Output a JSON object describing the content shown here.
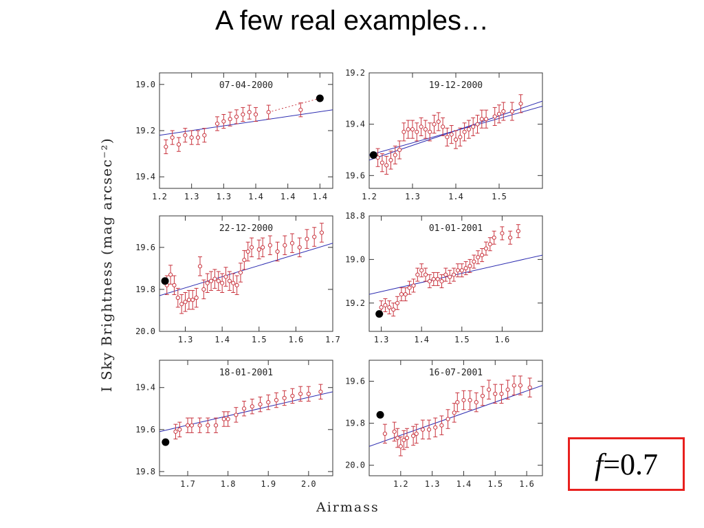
{
  "title": "A few real examples…",
  "ylabel": "I Sky Brightness (mag arcsec⁻²)",
  "xlabel": "Airmass",
  "f_box": {
    "symbol": "f",
    "value": "=0.7",
    "border_color": "#e8201e"
  },
  "colors": {
    "points": "#c8323c",
    "fit": "#2b2bb0",
    "highlight": "#000000",
    "axis": "#333333"
  },
  "chart_data": [
    {
      "type": "scatter",
      "title": "07-04-2000",
      "xlim": [
        1.2,
        1.47
      ],
      "ylim": [
        19.45,
        18.95
      ],
      "y_inverted": true,
      "xticks": [
        1.2,
        1.25,
        1.3,
        1.35,
        1.4,
        1.45
      ],
      "xtick_labels": [
        "1.2",
        "1.3",
        "1.3",
        "1.4",
        "1.4",
        "1.4"
      ],
      "yticks": [
        19.0,
        19.2,
        19.4
      ],
      "points": {
        "x": [
          1.21,
          1.22,
          1.23,
          1.24,
          1.25,
          1.26,
          1.27,
          1.29,
          1.3,
          1.31,
          1.32,
          1.33,
          1.34,
          1.35,
          1.37,
          1.42
        ],
        "y": [
          19.27,
          19.23,
          19.26,
          19.22,
          19.23,
          19.23,
          19.22,
          19.17,
          19.16,
          19.15,
          19.14,
          19.13,
          19.12,
          19.13,
          19.12,
          19.11
        ]
      },
      "errorbar": 0.03,
      "fit": {
        "x": [
          1.2,
          1.47
        ],
        "y": [
          19.22,
          19.11
        ]
      },
      "highlight": {
        "x": 1.45,
        "y": 19.06
      },
      "dotted_line": {
        "x": [
          1.37,
          1.45
        ],
        "y": [
          19.12,
          19.06
        ]
      }
    },
    {
      "type": "scatter",
      "title": "19-12-2000",
      "xlim": [
        1.2,
        1.6
      ],
      "ylim": [
        19.65,
        19.2
      ],
      "y_inverted": true,
      "xticks": [
        1.2,
        1.3,
        1.4,
        1.5
      ],
      "xtick_labels": [
        "1.2",
        "1.3",
        "1.4",
        "1.5"
      ],
      "yticks": [
        19.2,
        19.4,
        19.6
      ],
      "points": {
        "x": [
          1.22,
          1.23,
          1.24,
          1.25,
          1.26,
          1.27,
          1.28,
          1.29,
          1.3,
          1.31,
          1.32,
          1.33,
          1.34,
          1.35,
          1.36,
          1.37,
          1.38,
          1.39,
          1.4,
          1.41,
          1.42,
          1.43,
          1.44,
          1.45,
          1.46,
          1.47,
          1.49,
          1.5,
          1.51,
          1.53,
          1.55
        ],
        "y": [
          19.53,
          19.55,
          19.56,
          19.54,
          19.52,
          19.5,
          19.43,
          19.42,
          19.42,
          19.43,
          19.41,
          19.42,
          19.43,
          19.4,
          19.39,
          19.41,
          19.45,
          19.44,
          19.46,
          19.45,
          19.43,
          19.42,
          19.41,
          19.4,
          19.38,
          19.38,
          19.37,
          19.36,
          19.35,
          19.35,
          19.32
        ]
      },
      "errorbar": 0.035,
      "fit": {
        "x": [
          1.2,
          1.6
        ],
        "y": [
          19.52,
          19.33
        ]
      },
      "fit2": {
        "x": [
          1.2,
          1.6
        ],
        "y": [
          19.54,
          19.31
        ]
      },
      "highlight": {
        "x": 1.21,
        "y": 19.52
      }
    },
    {
      "type": "scatter",
      "title": "22-12-2000",
      "xlim": [
        1.23,
        1.7
      ],
      "ylim": [
        20.0,
        19.45
      ],
      "y_inverted": true,
      "xticks": [
        1.3,
        1.4,
        1.5,
        1.6,
        1.7
      ],
      "xtick_labels": [
        "1.3",
        "1.4",
        "1.5",
        "1.6",
        "1.7"
      ],
      "yticks": [
        19.6,
        19.8,
        20.0
      ],
      "points": {
        "x": [
          1.25,
          1.26,
          1.27,
          1.28,
          1.29,
          1.3,
          1.31,
          1.32,
          1.33,
          1.34,
          1.35,
          1.36,
          1.37,
          1.38,
          1.39,
          1.4,
          1.41,
          1.42,
          1.43,
          1.44,
          1.45,
          1.46,
          1.47,
          1.48,
          1.5,
          1.51,
          1.53,
          1.55,
          1.57,
          1.59,
          1.61,
          1.63,
          1.65,
          1.67
        ],
        "y": [
          19.78,
          19.73,
          19.78,
          19.84,
          19.87,
          19.86,
          19.85,
          19.85,
          19.84,
          19.69,
          19.8,
          19.77,
          19.76,
          19.75,
          19.76,
          19.77,
          19.74,
          19.76,
          19.77,
          19.78,
          19.72,
          19.66,
          19.62,
          19.6,
          19.61,
          19.6,
          19.59,
          19.62,
          19.59,
          19.58,
          19.6,
          19.56,
          19.55,
          19.53
        ]
      },
      "errorbar": 0.045,
      "fit": {
        "x": [
          1.23,
          1.7
        ],
        "y": [
          19.83,
          19.58
        ]
      },
      "highlight": {
        "x": 1.245,
        "y": 19.76
      }
    },
    {
      "type": "scatter",
      "title": "01-01-2001",
      "xlim": [
        1.27,
        1.7
      ],
      "ylim": [
        19.33,
        18.8
      ],
      "y_inverted": true,
      "xticks": [
        1.3,
        1.4,
        1.5,
        1.6
      ],
      "xtick_labels": [
        "1.3",
        "1.4",
        "1.5",
        "1.6"
      ],
      "yticks": [
        18.8,
        19.0,
        19.2
      ],
      "points": {
        "x": [
          1.3,
          1.31,
          1.32,
          1.33,
          1.34,
          1.35,
          1.36,
          1.37,
          1.38,
          1.39,
          1.4,
          1.41,
          1.42,
          1.43,
          1.44,
          1.45,
          1.46,
          1.47,
          1.48,
          1.49,
          1.5,
          1.51,
          1.52,
          1.53,
          1.54,
          1.55,
          1.56,
          1.57,
          1.58,
          1.6,
          1.62,
          1.64
        ],
        "y": [
          19.22,
          19.21,
          19.22,
          19.23,
          19.2,
          19.16,
          19.16,
          19.13,
          19.12,
          19.07,
          19.05,
          19.07,
          19.1,
          19.09,
          19.09,
          19.1,
          19.07,
          19.08,
          19.07,
          19.05,
          19.05,
          19.04,
          19.03,
          19.01,
          18.99,
          18.98,
          18.95,
          18.93,
          18.9,
          18.88,
          18.9,
          18.87
        ]
      },
      "errorbar": 0.03,
      "fit": {
        "x": [
          1.27,
          1.7
        ],
        "y": [
          19.16,
          18.98
        ]
      },
      "highlight": {
        "x": 1.295,
        "y": 19.25
      }
    },
    {
      "type": "scatter",
      "title": "18-01-2001",
      "xlim": [
        1.63,
        2.06
      ],
      "ylim": [
        19.82,
        19.27
      ],
      "y_inverted": true,
      "xticks": [
        1.7,
        1.8,
        1.9,
        2.0
      ],
      "xtick_labels": [
        "1.7",
        "1.8",
        "1.9",
        "2.0"
      ],
      "yticks": [
        19.4,
        19.6,
        19.8
      ],
      "points": {
        "x": [
          1.67,
          1.68,
          1.7,
          1.71,
          1.73,
          1.75,
          1.77,
          1.79,
          1.8,
          1.82,
          1.84,
          1.86,
          1.88,
          1.9,
          1.92,
          1.94,
          1.96,
          1.98,
          2.0,
          2.03
        ],
        "y": [
          19.61,
          19.6,
          19.58,
          19.58,
          19.58,
          19.58,
          19.58,
          19.55,
          19.55,
          19.53,
          19.5,
          19.49,
          19.48,
          19.47,
          19.46,
          19.45,
          19.44,
          19.43,
          19.43,
          19.42
        ]
      },
      "errorbar": 0.035,
      "fit": {
        "x": [
          1.63,
          2.06
        ],
        "y": [
          19.61,
          19.42
        ]
      },
      "highlight": {
        "x": 1.645,
        "y": 19.66
      }
    },
    {
      "type": "scatter",
      "title": "16-07-2001",
      "xlim": [
        1.1,
        1.65
      ],
      "ylim": [
        20.05,
        19.5
      ],
      "y_inverted": true,
      "xticks": [
        1.2,
        1.3,
        1.4,
        1.5,
        1.6
      ],
      "xtick_labels": [
        "1.2",
        "1.3",
        "1.4",
        "1.5",
        "1.6"
      ],
      "yticks": [
        19.6,
        19.8,
        20.0
      ],
      "points": {
        "x": [
          1.15,
          1.18,
          1.19,
          1.2,
          1.21,
          1.22,
          1.24,
          1.25,
          1.27,
          1.29,
          1.31,
          1.33,
          1.35,
          1.37,
          1.38,
          1.4,
          1.42,
          1.44,
          1.46,
          1.48,
          1.5,
          1.52,
          1.54,
          1.56,
          1.58,
          1.61
        ],
        "y": [
          19.85,
          19.84,
          19.87,
          19.91,
          19.88,
          19.87,
          19.86,
          19.85,
          19.83,
          19.83,
          19.82,
          19.81,
          19.78,
          19.75,
          19.7,
          19.69,
          19.69,
          19.7,
          19.67,
          19.64,
          19.66,
          19.66,
          19.64,
          19.62,
          19.62,
          19.63
        ]
      },
      "errorbar": 0.045,
      "fit": {
        "x": [
          1.1,
          1.65
        ],
        "y": [
          19.91,
          19.62
        ]
      },
      "highlight": {
        "x": 1.135,
        "y": 19.76
      }
    }
  ]
}
